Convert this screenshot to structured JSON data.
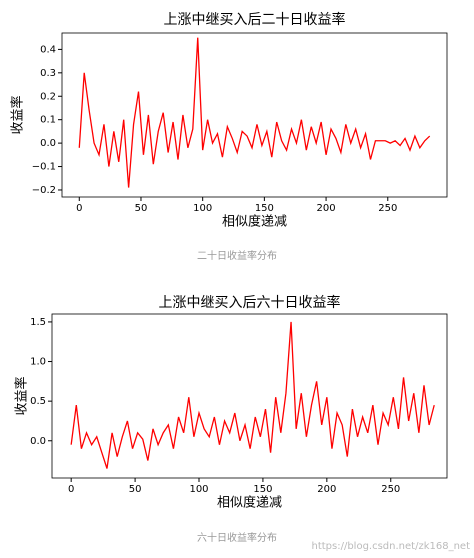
{
  "chart_data": [
    {
      "type": "line",
      "title": "上涨中继买入后二十日收益率",
      "xlabel": "相似度递减",
      "ylabel": "收益率",
      "caption": "二十日收益率分布",
      "x": [
        0,
        4,
        8,
        12,
        16,
        20,
        24,
        28,
        32,
        36,
        40,
        44,
        48,
        52,
        56,
        60,
        64,
        68,
        72,
        76,
        80,
        84,
        88,
        92,
        96,
        100,
        104,
        108,
        112,
        116,
        120,
        124,
        128,
        132,
        136,
        140,
        144,
        148,
        152,
        156,
        160,
        164,
        168,
        172,
        176,
        180,
        184,
        188,
        192,
        196,
        200,
        204,
        208,
        212,
        216,
        220,
        224,
        228,
        232,
        236,
        240,
        244,
        248,
        252,
        256,
        260,
        264,
        268,
        272,
        276,
        280,
        284
      ],
      "series": [
        {
          "name": "收益率",
          "color": "#ff0000",
          "values": [
            -0.02,
            0.3,
            0.14,
            0.0,
            -0.05,
            0.08,
            -0.1,
            0.05,
            -0.08,
            0.1,
            -0.19,
            0.08,
            0.22,
            -0.05,
            0.12,
            -0.09,
            0.05,
            0.13,
            -0.04,
            0.09,
            -0.07,
            0.12,
            -0.02,
            0.06,
            0.45,
            -0.03,
            0.1,
            0.0,
            0.04,
            -0.06,
            0.07,
            0.02,
            -0.04,
            0.05,
            0.03,
            -0.02,
            0.08,
            -0.01,
            0.05,
            -0.06,
            0.09,
            0.01,
            -0.03,
            0.06,
            0.0,
            0.1,
            -0.03,
            0.07,
            0.0,
            0.09,
            -0.05,
            0.06,
            0.02,
            -0.04,
            0.08,
            0.0,
            0.06,
            -0.02,
            0.04,
            -0.07,
            0.01,
            0.01,
            0.01,
            0.0,
            0.01,
            -0.01,
            0.02,
            -0.03,
            0.03,
            -0.02,
            0.01,
            0.03
          ]
        }
      ],
      "xlim": [
        -14,
        298
      ],
      "ylim": [
        -0.23,
        0.47
      ],
      "xticks": [
        0,
        50,
        100,
        150,
        200,
        250
      ],
      "yticks": [
        {
          "value": -0.2,
          "label": "−0.2"
        },
        {
          "value": -0.1,
          "label": "−0.1"
        },
        {
          "value": 0,
          "label": "0.0"
        },
        0.1,
        0.2,
        0.3,
        0.4
      ]
    },
    {
      "type": "line",
      "title": "上涨中继买入后六十日收益率",
      "xlabel": "相似度递减",
      "ylabel": "收益率",
      "caption": "六十日收益率分布",
      "x": [
        0,
        4,
        8,
        12,
        16,
        20,
        24,
        28,
        32,
        36,
        40,
        44,
        48,
        52,
        56,
        60,
        64,
        68,
        72,
        76,
        80,
        84,
        88,
        92,
        96,
        100,
        104,
        108,
        112,
        116,
        120,
        124,
        128,
        132,
        136,
        140,
        144,
        148,
        152,
        156,
        160,
        164,
        168,
        172,
        176,
        180,
        184,
        188,
        192,
        196,
        200,
        204,
        208,
        212,
        216,
        220,
        224,
        228,
        232,
        236,
        240,
        244,
        248,
        252,
        256,
        260,
        264,
        268,
        272,
        276,
        280,
        284
      ],
      "series": [
        {
          "name": "收益率",
          "color": "#ff0000",
          "values": [
            -0.05,
            0.45,
            -0.1,
            0.1,
            -0.05,
            0.05,
            -0.15,
            -0.35,
            0.1,
            -0.2,
            0.05,
            0.25,
            -0.1,
            0.1,
            0.02,
            -0.25,
            0.15,
            -0.05,
            0.1,
            0.2,
            -0.1,
            0.3,
            0.1,
            0.55,
            0.05,
            0.35,
            0.15,
            0.05,
            0.3,
            -0.05,
            0.25,
            0.1,
            0.35,
            0.0,
            0.2,
            -0.1,
            0.3,
            0.05,
            0.4,
            -0.15,
            0.55,
            0.1,
            0.6,
            1.5,
            0.15,
            0.6,
            0.05,
            0.45,
            0.75,
            0.2,
            0.55,
            -0.1,
            0.35,
            0.2,
            -0.2,
            0.4,
            0.05,
            0.3,
            0.1,
            0.45,
            -0.05,
            0.35,
            0.2,
            0.55,
            0.15,
            0.8,
            0.25,
            0.6,
            0.1,
            0.7,
            0.2,
            0.45
          ]
        }
      ],
      "xlim": [
        -15,
        294
      ],
      "ylim": [
        -0.47,
        1.6
      ],
      "xticks": [
        0,
        50,
        100,
        150,
        200,
        250
      ],
      "yticks": [
        {
          "value": 0,
          "label": "0.0"
        },
        0.5,
        {
          "value": 1,
          "label": "1.0"
        },
        1.5
      ]
    }
  ],
  "watermark": "https://blog.csdn.net/zk168_net"
}
